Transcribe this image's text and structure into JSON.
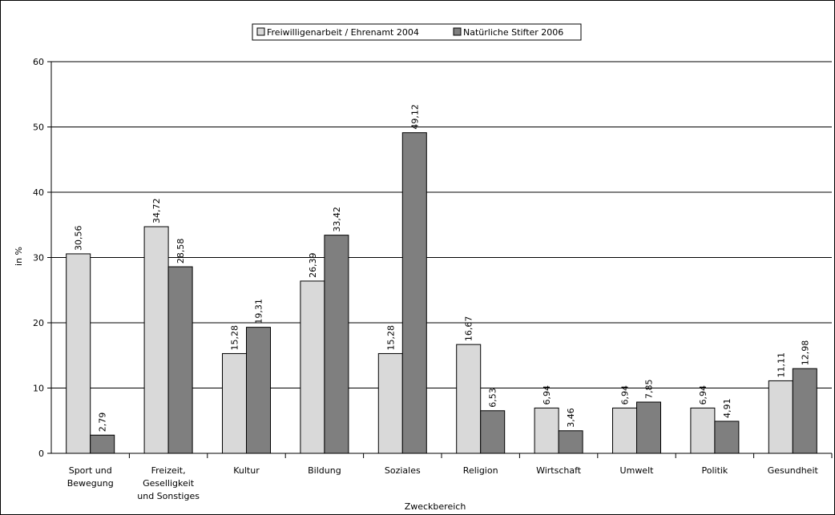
{
  "chart_data": {
    "type": "bar",
    "ylabel": "in %",
    "xlabel": "Zweckbereich",
    "ylim": [
      0,
      60
    ],
    "yticks": [
      0,
      10,
      20,
      30,
      40,
      50,
      60
    ],
    "grid": true,
    "legend_position": "top",
    "categories": [
      [
        "Sport und",
        "Bewegung"
      ],
      [
        "Freizeit,",
        "Geselligkeit",
        "und Sonstiges"
      ],
      [
        "Kultur"
      ],
      [
        "Bildung"
      ],
      [
        "Soziales"
      ],
      [
        "Religion"
      ],
      [
        "Wirtschaft"
      ],
      [
        "Umwelt"
      ],
      [
        "Politik"
      ],
      [
        "Gesundheit"
      ]
    ],
    "series": [
      {
        "name": "Freiwilligenarbeit / Ehrenamt 2004",
        "color": "#d9d9d9",
        "values": [
          30.56,
          34.72,
          15.28,
          26.39,
          15.28,
          16.67,
          6.94,
          6.94,
          6.94,
          11.11
        ],
        "labels": [
          "30,56",
          "34,72",
          "15,28",
          "26,39",
          "15,28",
          "16,67",
          "6,94",
          "6,94",
          "6,94",
          "11,11"
        ]
      },
      {
        "name": "Natürliche Stifter 2006",
        "color": "#7f7f7f",
        "values": [
          2.79,
          28.58,
          19.31,
          33.42,
          49.12,
          6.53,
          3.46,
          7.85,
          4.91,
          12.98
        ],
        "labels": [
          "2,79",
          "28,58",
          "19,31",
          "33,42",
          "49,12",
          "6,53",
          "3,46",
          "7,85",
          "4,91",
          "12,98"
        ]
      }
    ]
  }
}
